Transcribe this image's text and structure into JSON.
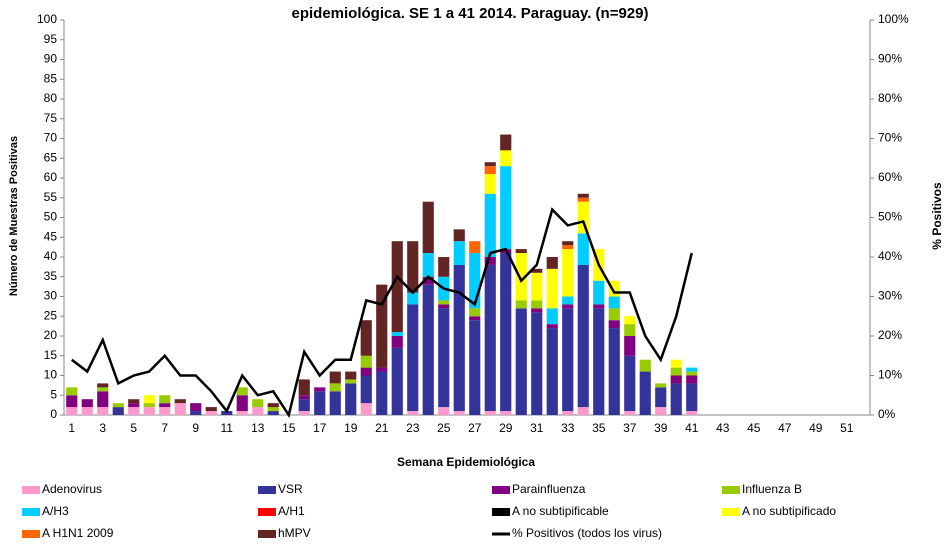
{
  "chart_data": {
    "type": "bar",
    "stacked": true,
    "title": "epidemiológica. SE 1 a 41 2014. Paraguay. (n=929)",
    "x_label": "Semana Epidemiológica",
    "y_label": "Número de Muestras Positivas",
    "y2_label": "% Positivos",
    "categories": [
      1,
      null,
      3,
      null,
      5,
      null,
      7,
      null,
      9,
      null,
      11,
      null,
      13,
      null,
      15,
      null,
      17,
      null,
      19,
      null,
      21,
      null,
      23,
      null,
      25,
      null,
      27,
      null,
      29,
      null,
      31,
      null,
      33,
      null,
      35,
      null,
      37,
      null,
      39,
      null,
      41,
      null,
      43,
      null,
      45,
      null,
      47,
      null,
      49,
      null,
      51,
      null
    ],
    "ylim": [
      0,
      100
    ],
    "yticks": [
      0,
      5,
      10,
      15,
      20,
      25,
      30,
      35,
      40,
      45,
      50,
      55,
      60,
      65,
      70,
      75,
      80,
      85,
      90,
      95,
      100
    ],
    "y2lim": [
      0,
      100
    ],
    "y2ticks": [
      {
        "value": 0,
        "label": "0%"
      },
      {
        "value": 10,
        "label": "10%"
      },
      {
        "value": 20,
        "label": "20%"
      },
      {
        "value": 30,
        "label": "30%"
      },
      {
        "value": 40,
        "label": "40%"
      },
      {
        "value": 50,
        "label": "50%"
      },
      {
        "value": 60,
        "label": "60%"
      },
      {
        "value": 70,
        "label": "70%"
      },
      {
        "value": 80,
        "label": "80%"
      },
      {
        "value": 90,
        "label": "90%"
      },
      {
        "value": 100,
        "label": "100%"
      }
    ],
    "legend": "bottom",
    "series": [
      {
        "name": "Adenovirus",
        "color": "#ff99cc",
        "values": [
          2,
          2,
          2,
          0,
          2,
          2,
          2,
          3,
          0,
          1,
          0,
          1,
          2,
          0,
          0,
          1,
          0,
          0,
          0,
          3,
          0,
          0,
          1,
          0,
          2,
          1,
          0,
          1,
          1,
          0,
          0,
          0,
          1,
          2,
          0,
          0,
          1,
          0,
          2,
          0,
          1,
          null,
          null,
          null,
          null,
          null,
          null,
          null,
          null,
          null,
          null,
          null
        ]
      },
      {
        "name": "VSR",
        "color": "#333399",
        "values": [
          0,
          0,
          0,
          2,
          0,
          0,
          0,
          0,
          1,
          0,
          1,
          0,
          0,
          1,
          0,
          3,
          6,
          6,
          8,
          7,
          11,
          17,
          27,
          33,
          25,
          37,
          24,
          37,
          40,
          27,
          26,
          22,
          26,
          36,
          27,
          22,
          14,
          11,
          5,
          8,
          7,
          null,
          null,
          null,
          null,
          null,
          null,
          null,
          null,
          null,
          null,
          null
        ]
      },
      {
        "name": "Parainfluenza",
        "color": "#800080",
        "values": [
          3,
          2,
          4,
          0,
          1,
          0,
          1,
          0,
          2,
          0,
          0,
          4,
          0,
          0,
          0,
          1,
          1,
          0,
          0,
          2,
          1,
          3,
          0,
          2,
          1,
          0,
          1,
          2,
          1,
          0,
          1,
          1,
          1,
          0,
          1,
          2,
          5,
          0,
          0,
          2,
          2,
          null,
          null,
          null,
          null,
          null,
          null,
          null,
          null,
          null,
          null,
          null
        ]
      },
      {
        "name": "Influenza  B",
        "color": "#99cc00",
        "values": [
          2,
          0,
          1,
          1,
          0,
          1,
          2,
          0,
          0,
          0,
          0,
          2,
          2,
          1,
          0,
          0,
          0,
          2,
          1,
          3,
          0,
          0,
          0,
          0,
          1,
          0,
          2,
          0,
          0,
          2,
          2,
          0,
          0,
          0,
          0,
          3,
          3,
          3,
          1,
          2,
          1,
          null,
          null,
          null,
          null,
          null,
          null,
          null,
          null,
          null,
          null,
          null
        ]
      },
      {
        "name": "A/H3",
        "color": "#00ccff",
        "values": [
          0,
          0,
          0,
          0,
          0,
          0,
          0,
          0,
          0,
          0,
          0,
          0,
          0,
          0,
          0,
          0,
          0,
          0,
          0,
          0,
          0,
          1,
          3,
          6,
          6,
          6,
          14,
          16,
          21,
          0,
          0,
          4,
          2,
          8,
          6,
          3,
          0,
          0,
          0,
          0,
          1,
          null,
          null,
          null,
          null,
          null,
          null,
          null,
          null,
          null,
          null,
          null
        ]
      },
      {
        "name": "A/H1",
        "color": "#ff0000",
        "values": [
          0,
          0,
          0,
          0,
          0,
          0,
          0,
          0,
          0,
          0,
          0,
          0,
          0,
          0,
          0,
          0,
          0,
          0,
          0,
          0,
          0,
          0,
          0,
          0,
          0,
          0,
          0,
          0,
          0,
          0,
          0,
          0,
          0,
          0,
          0,
          0,
          0,
          0,
          0,
          0,
          0,
          null,
          null,
          null,
          null,
          null,
          null,
          null,
          null,
          null,
          null,
          null
        ]
      },
      {
        "name": "A no subtipificable",
        "color": "#000000",
        "values": [
          0,
          0,
          0,
          0,
          0,
          0,
          0,
          0,
          0,
          0,
          0,
          0,
          0,
          0,
          0,
          0,
          0,
          0,
          0,
          0,
          0,
          0,
          0,
          0,
          0,
          0,
          0,
          0,
          0,
          0,
          0,
          0,
          0,
          0,
          0,
          0,
          0,
          0,
          0,
          0,
          0,
          null,
          null,
          null,
          null,
          null,
          null,
          null,
          null,
          null,
          null,
          null
        ]
      },
      {
        "name": "A no subtipificado",
        "color": "#ffff00",
        "values": [
          0,
          0,
          0,
          0,
          0,
          2,
          0,
          0,
          0,
          0,
          0,
          0,
          0,
          0,
          0,
          0,
          0,
          0,
          0,
          0,
          0,
          0,
          0,
          0,
          0,
          0,
          0,
          5,
          4,
          12,
          7,
          10,
          12,
          8,
          8,
          4,
          2,
          0,
          0,
          2,
          0,
          null,
          null,
          null,
          null,
          null,
          null,
          null,
          null,
          null,
          null,
          null
        ]
      },
      {
        "name": "A H1N1 2009",
        "color": "#ff6600",
        "values": [
          0,
          0,
          0,
          0,
          0,
          0,
          0,
          0,
          0,
          0,
          0,
          0,
          0,
          0,
          0,
          0,
          0,
          0,
          0,
          0,
          0,
          0,
          0,
          0,
          0,
          0,
          3,
          2,
          0,
          0,
          0,
          0,
          1,
          1,
          0,
          0,
          0,
          0,
          0,
          0,
          0,
          null,
          null,
          null,
          null,
          null,
          null,
          null,
          null,
          null,
          null,
          null
        ]
      },
      {
        "name": "hMPV",
        "color": "#632523",
        "values": [
          0,
          0,
          1,
          0,
          1,
          0,
          0,
          1,
          0,
          1,
          0,
          0,
          0,
          1,
          0,
          4,
          0,
          3,
          2,
          9,
          21,
          23,
          13,
          13,
          5,
          3,
          0,
          1,
          4,
          1,
          1,
          3,
          1,
          1,
          0,
          0,
          0,
          0,
          0,
          0,
          0,
          null,
          null,
          null,
          null,
          null,
          null,
          null,
          null,
          null,
          null,
          null
        ]
      },
      {
        "name": "% Positivos (todos los virus)",
        "color": "#000000",
        "type": "line",
        "axis": "y2",
        "values": [
          14,
          11,
          19,
          8,
          10,
          11,
          15,
          10,
          10,
          6,
          1,
          10,
          5,
          6,
          0,
          16,
          10,
          14,
          14,
          29,
          28,
          35,
          31,
          35,
          32,
          31,
          28,
          41,
          42,
          34,
          38,
          52,
          48,
          49,
          38,
          31,
          31,
          20,
          14,
          25,
          41,
          null,
          null,
          null,
          null,
          null,
          null,
          null,
          null,
          null,
          null,
          null
        ]
      }
    ]
  }
}
